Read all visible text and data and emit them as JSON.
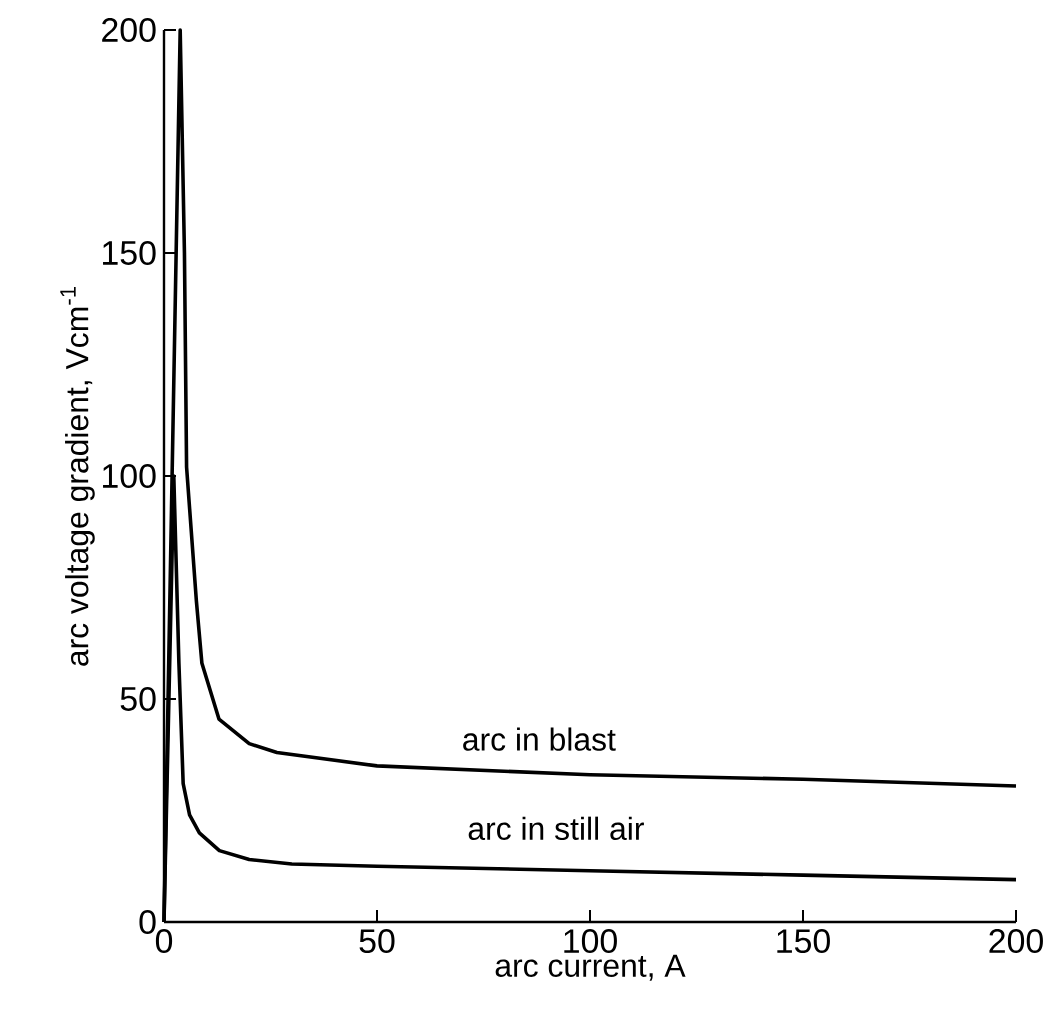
{
  "chart_data": {
    "type": "line",
    "xlabel": "arc current, A",
    "ylabel": "arc voltage gradient, Vcm$^{-1}$",
    "xlim": [
      0,
      200
    ],
    "ylim": [
      0,
      200
    ],
    "xticks": [
      0,
      50,
      100,
      150,
      200
    ],
    "yticks": [
      0,
      50,
      100,
      150,
      200
    ],
    "grid": false,
    "marker": "none",
    "line_style": "solid",
    "series": [
      {
        "color": "#000000",
        "x": [
          0,
          3.8,
          4.8,
          5.3,
          7.6,
          8.9,
          12.9,
          20,
          26.5,
          50,
          100,
          150,
          200
        ],
        "values": [
          0,
          200,
          150,
          102,
          72,
          58,
          45.5,
          40,
          38,
          35,
          33,
          32,
          30.5
        ]
      },
      {
        "color": "#000000",
        "x": [
          0,
          2.3,
          3.5,
          4.5,
          6,
          8.3,
          13,
          20,
          30,
          50,
          100,
          150,
          200
        ],
        "values": [
          0,
          100,
          58,
          31,
          24,
          20,
          16,
          14,
          13,
          12.5,
          11.5,
          10.5,
          9.5
        ]
      }
    ],
    "annotations": [
      "arc in blast",
      "arc in still air"
    ]
  }
}
